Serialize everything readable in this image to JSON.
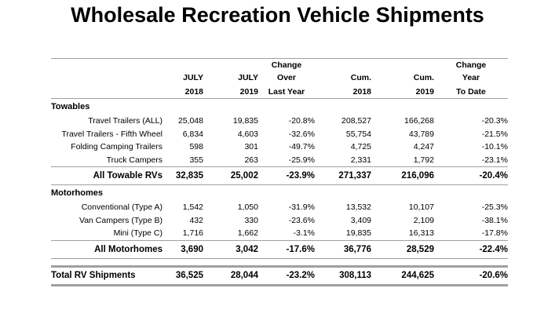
{
  "title": "Wholesale Recreation Vehicle Shipments",
  "header": {
    "rows": [
      [
        "",
        "",
        "",
        "Change",
        "",
        "",
        "Change"
      ],
      [
        "",
        "JULY",
        "JULY",
        "Over",
        "Cum.",
        "Cum.",
        "Year"
      ],
      [
        "",
        "2018",
        "2019",
        "Last Year",
        "2018",
        "2019",
        "To Date"
      ]
    ]
  },
  "towables": {
    "heading": "Towables",
    "rows": [
      [
        "Travel Trailers (ALL)",
        "25,048",
        "19,835",
        "-20.8%",
        "208,527",
        "166,268",
        "-20.3%"
      ],
      [
        "Travel Trailers - Fifth Wheel",
        "6,834",
        "4,603",
        "-32.6%",
        "55,754",
        "43,789",
        "-21.5%"
      ],
      [
        "Folding Camping Trailers",
        "598",
        "301",
        "-49.7%",
        "4,725",
        "4,247",
        "-10.1%"
      ],
      [
        "Truck Campers",
        "355",
        "263",
        "-25.9%",
        "2,331",
        "1,792",
        "-23.1%"
      ]
    ],
    "total": [
      "All Towable RVs",
      "32,835",
      "25,002",
      "-23.9%",
      "271,337",
      "216,096",
      "-20.4%"
    ]
  },
  "motorhomes": {
    "heading": "Motorhomes",
    "rows": [
      [
        "Conventional (Type A)",
        "1,542",
        "1,050",
        "-31.9%",
        "13,532",
        "10,107",
        "-25.3%"
      ],
      [
        "Van Campers (Type B)",
        "432",
        "330",
        "-23.6%",
        "3,409",
        "2,109",
        "-38.1%"
      ],
      [
        "Mini (Type C)",
        "1,716",
        "1,662",
        "-3.1%",
        "19,835",
        "16,313",
        "-17.8%"
      ]
    ],
    "total": [
      "All Motorhomes",
      "3,690",
      "3,042",
      "-17.6%",
      "36,776",
      "28,529",
      "-22.4%"
    ]
  },
  "grand_total": [
    "Total RV Shipments",
    "36,525",
    "28,044",
    "-23.2%",
    "308,113",
    "244,625",
    "-20.6%"
  ]
}
